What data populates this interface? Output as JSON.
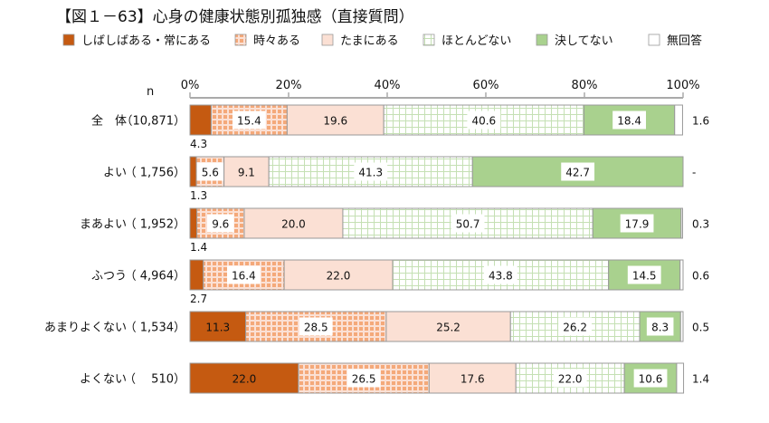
{
  "chart_data": {
    "type": "bar",
    "orientation": "horizontal-stacked-100",
    "title": "【図１－63】心身の健康状態別孤独感（直接質問）",
    "n_label": "n",
    "xlim": [
      0,
      100
    ],
    "x_ticks": [
      "0%",
      "20%",
      "40%",
      "60%",
      "80%",
      "100%"
    ],
    "legend_position": "top",
    "series": [
      {
        "name": "しばしばある・常にある",
        "color": "#c55a11",
        "fill": "solid"
      },
      {
        "name": "時々ある",
        "color": "#f4b183",
        "fill": "checker"
      },
      {
        "name": "たまにある",
        "color": "#fbe0d4",
        "fill": "solid"
      },
      {
        "name": "ほとんどない",
        "color": "#c5e0b4",
        "fill": "grid"
      },
      {
        "name": "決してない",
        "color": "#a9d18e",
        "fill": "solid"
      },
      {
        "name": "無回答",
        "color": "#ffffff",
        "fill": "solid"
      }
    ],
    "categories": [
      {
        "label": "全　体",
        "n": "（10,871）",
        "values": [
          4.3,
          15.4,
          19.6,
          40.6,
          18.4,
          1.6
        ],
        "labels": [
          "4.3",
          "15.4",
          "19.6",
          "40.6",
          "18.4",
          "1.6"
        ]
      },
      {
        "label": "よい",
        "n": "（ 1,756）",
        "values": [
          1.3,
          5.6,
          9.1,
          41.3,
          42.7,
          0
        ],
        "labels": [
          "1.3",
          "5.6",
          "9.1",
          "41.3",
          "42.7",
          "-"
        ]
      },
      {
        "label": "まあよい",
        "n": "（ 1,952）",
        "values": [
          1.4,
          9.6,
          20.0,
          50.7,
          17.9,
          0.3
        ],
        "labels": [
          "1.4",
          "9.6",
          "20.0",
          "50.7",
          "17.9",
          "0.3"
        ]
      },
      {
        "label": "ふつう",
        "n": "（ 4,964）",
        "values": [
          2.7,
          16.4,
          22.0,
          43.8,
          14.5,
          0.6
        ],
        "labels": [
          "2.7",
          "16.4",
          "22.0",
          "43.8",
          "14.5",
          "0.6"
        ]
      },
      {
        "label": "あまりよくない",
        "n": "（ 1,534）",
        "values": [
          11.3,
          28.5,
          25.2,
          26.2,
          8.3,
          0.5
        ],
        "labels": [
          "11.3",
          "28.5",
          "25.2",
          "26.2",
          "8.3",
          "0.5"
        ]
      },
      {
        "label": "よくない",
        "n": "（　 510）",
        "values": [
          22.0,
          26.5,
          17.6,
          22.0,
          10.6,
          1.4
        ],
        "labels": [
          "22.0",
          "26.5",
          "17.6",
          "22.0",
          "10.6",
          "1.4"
        ]
      }
    ]
  }
}
